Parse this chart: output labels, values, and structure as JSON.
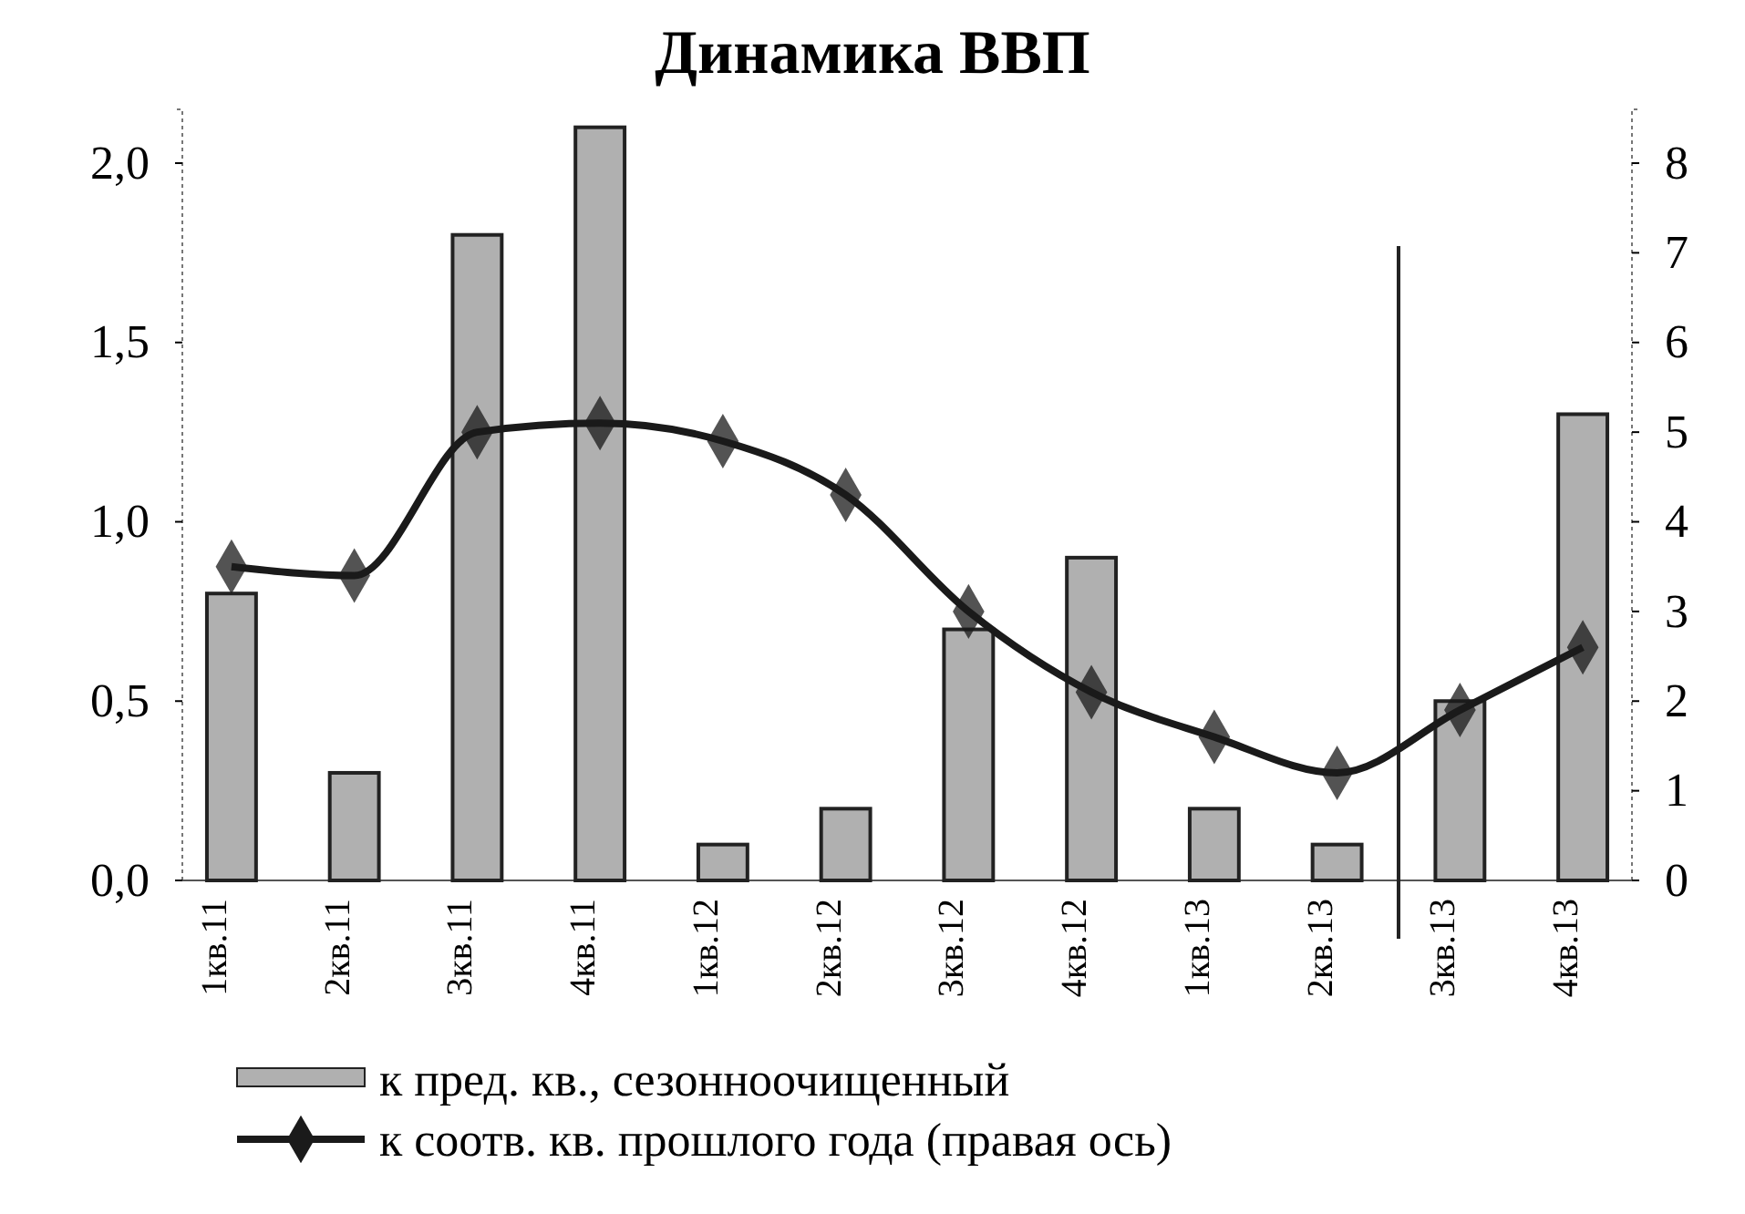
{
  "chart_data": {
    "type": "bar",
    "title": "Динамика ВВП",
    "categories": [
      "1кв.11",
      "2кв.11",
      "3кв.11",
      "4кв.11",
      "1кв.12",
      "2кв.12",
      "3кв.12",
      "4кв.12",
      "1кв.13",
      "2кв.13",
      "3кв.13",
      "4кв.13"
    ],
    "series": [
      {
        "name": "к пред. кв., сезонноочищенный",
        "color": "#b0b0b0",
        "values": [
          0.8,
          0.3,
          1.8,
          2.1,
          0.1,
          0.2,
          0.7,
          0.9,
          0.2,
          0.1,
          0.5,
          1.3
        ]
      },
      {
        "name": "к соотв. кв. прошлого года (правая ось)",
        "type": "line",
        "axis": "y2",
        "color": "#1a1a1a",
        "marker": "diamond",
        "values": [
          3.5,
          3.4,
          5.0,
          5.1,
          4.9,
          4.3,
          3.0,
          2.1,
          1.6,
          1.2,
          1.9,
          2.6
        ]
      }
    ],
    "ylim": [
      0,
      2.15
    ],
    "yticks": [
      {
        "value": 0,
        "label": "0,0"
      },
      {
        "value": 0.5,
        "label": "0,5"
      },
      {
        "value": 1,
        "label": "1,0"
      },
      {
        "value": 1.5,
        "label": "1,5"
      },
      {
        "value": 2,
        "label": "2,0"
      }
    ],
    "y2lim": [
      0,
      8.6
    ],
    "y2ticks": [
      0,
      1,
      2,
      3,
      4,
      5,
      6,
      7,
      8
    ],
    "ref_lines": [
      {
        "axis": "x",
        "value": "3кв.13",
        "color": "#222222"
      }
    ],
    "legend": "bottom",
    "grid": false
  }
}
